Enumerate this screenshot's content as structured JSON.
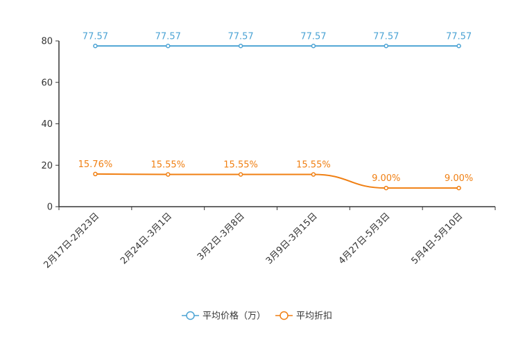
{
  "chart_data": {
    "type": "line",
    "categories": [
      "2月17日-2月23日",
      "2月24日-3月1日",
      "3月2日-3月8日",
      "3月9日-3月15日",
      "4月27日-5月3日",
      "5月4日-5月10日"
    ],
    "series": [
      {
        "name": "平均价格（万）",
        "values": [
          77.57,
          77.57,
          77.57,
          77.57,
          77.57,
          77.57
        ],
        "labels": [
          "77.57",
          "77.57",
          "77.57",
          "77.57",
          "77.57",
          "77.57"
        ],
        "color": "#4ba3d4"
      },
      {
        "name": "平均折扣",
        "values": [
          15.76,
          15.55,
          15.55,
          15.55,
          9.0,
          9.0
        ],
        "labels": [
          "15.76%",
          "15.55%",
          "15.55%",
          "15.55%",
          "9.00%",
          "9.00%"
        ],
        "color": "#f07f12"
      }
    ],
    "yticks": [
      "0",
      "20",
      "40",
      "60",
      "80"
    ],
    "ylim": [
      0,
      80
    ],
    "grid": false,
    "legend_position": "bottom-center",
    "title": "",
    "xlabel": "",
    "ylabel": ""
  }
}
